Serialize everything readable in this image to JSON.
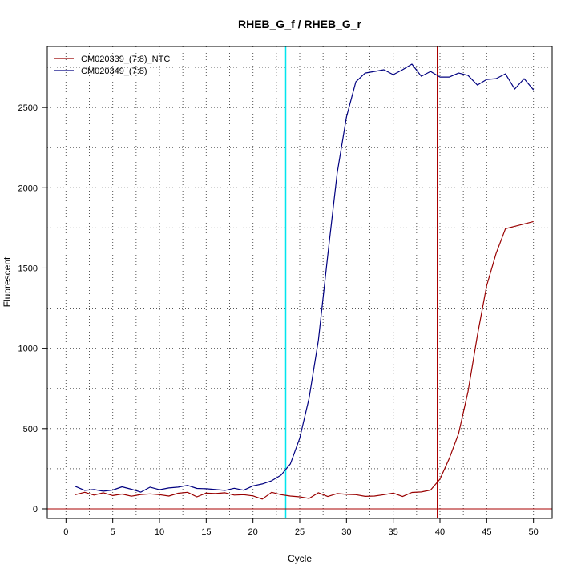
{
  "chart_data": {
    "type": "line",
    "title": "RHEB_G_f / RHEB_G_r",
    "xlabel": "Cycle",
    "ylabel": "Fluorescent",
    "xlim": [
      -2,
      52
    ],
    "ylim": [
      -60,
      2880
    ],
    "x_ticks": [
      0,
      5,
      10,
      15,
      20,
      25,
      30,
      35,
      40,
      45,
      50
    ],
    "y_ticks": [
      0,
      500,
      1000,
      1500,
      2000,
      2500
    ],
    "grid": true,
    "grid_style": "dotted",
    "legend_position": "top-left",
    "threshold": {
      "y": 0,
      "color": "#aa0000"
    },
    "vertical_markers": [
      {
        "x": 23.5,
        "color": "#00e5ee"
      },
      {
        "x": 39.7,
        "color": "#aa0000"
      }
    ],
    "series": [
      {
        "name": "CM020339_(7:8)_NTC",
        "color": "#990000",
        "x": [
          1,
          2,
          3,
          4,
          5,
          6,
          7,
          8,
          9,
          10,
          11,
          12,
          13,
          14,
          15,
          16,
          17,
          18,
          19,
          20,
          21,
          22,
          23,
          24,
          25,
          26,
          27,
          28,
          29,
          30,
          31,
          32,
          33,
          34,
          35,
          36,
          37,
          38,
          39,
          40,
          41,
          42,
          43,
          44,
          45,
          46,
          47,
          48,
          49,
          50
        ],
        "values": [
          88,
          103,
          86,
          100,
          83,
          92,
          79,
          89,
          93,
          88,
          80,
          97,
          103,
          75,
          98,
          95,
          100,
          86,
          88,
          81,
          61,
          103,
          88,
          80,
          75,
          65,
          100,
          77,
          95,
          90,
          88,
          78,
          80,
          88,
          98,
          77,
          102,
          105,
          117,
          185,
          315,
          470,
          730,
          1080,
          1390,
          1590,
          1745,
          1760,
          1775,
          1790
        ]
      },
      {
        "name": "CM020349_(7:8)",
        "color": "#000080",
        "x": [
          1,
          2,
          3,
          4,
          5,
          6,
          7,
          8,
          9,
          10,
          11,
          12,
          13,
          14,
          15,
          16,
          17,
          18,
          19,
          20,
          21,
          22,
          23,
          24,
          25,
          26,
          27,
          28,
          29,
          30,
          31,
          32,
          33,
          34,
          35,
          36,
          37,
          38,
          39,
          40,
          41,
          42,
          43,
          44,
          45,
          46,
          47,
          48,
          49,
          50
        ],
        "values": [
          140,
          115,
          120,
          110,
          117,
          137,
          122,
          104,
          135,
          119,
          130,
          135,
          146,
          127,
          125,
          120,
          115,
          128,
          116,
          143,
          155,
          175,
          210,
          280,
          440,
          690,
          1050,
          1580,
          2090,
          2440,
          2660,
          2715,
          2725,
          2735,
          2705,
          2735,
          2770,
          2695,
          2725,
          2690,
          2690,
          2715,
          2700,
          2640,
          2675,
          2680,
          2710,
          2615,
          2680,
          2610
        ]
      }
    ]
  }
}
